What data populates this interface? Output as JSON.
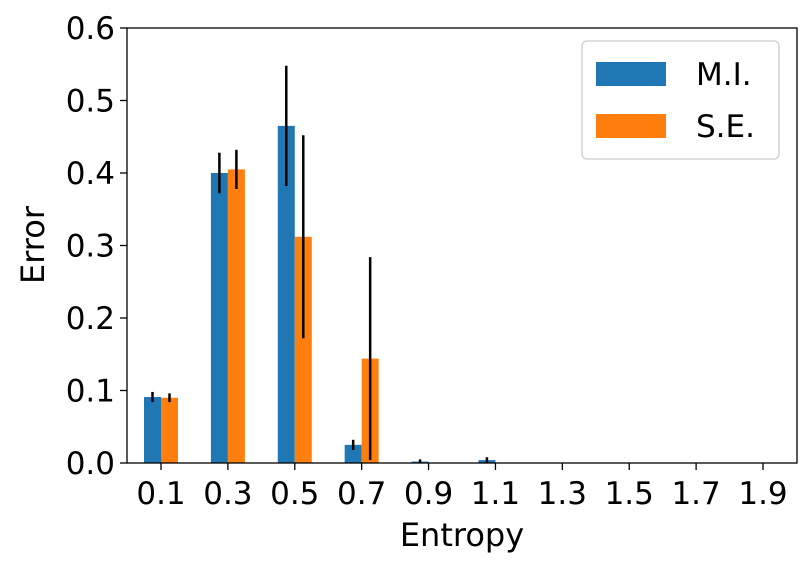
{
  "chart_data": {
    "type": "bar",
    "title": "",
    "xlabel": "Entropy",
    "ylabel": "Error",
    "ylim": [
      0,
      0.6
    ],
    "yticks": [
      "0.0",
      "0.1",
      "0.2",
      "0.3",
      "0.4",
      "0.5",
      "0.6"
    ],
    "categories": [
      "0.1",
      "0.3",
      "0.5",
      "0.7",
      "0.9",
      "1.1",
      "1.3",
      "1.5",
      "1.7",
      "1.9"
    ],
    "grid": false,
    "legend_position": "top-right",
    "series": [
      {
        "name": "M.I.",
        "color": "#1f77b4",
        "values": [
          0.091,
          0.4,
          0.465,
          0.025,
          0.002,
          0.004,
          0,
          0,
          0,
          0
        ],
        "error": [
          0.007,
          0.028,
          0.083,
          0.007,
          0.003,
          0.004,
          0,
          0,
          0,
          0
        ]
      },
      {
        "name": "S.E.",
        "color": "#ff7f0e",
        "values": [
          0.09,
          0.405,
          0.312,
          0.144,
          0,
          0,
          0,
          0,
          0,
          0
        ],
        "error": [
          0.006,
          0.027,
          0.14,
          0.14,
          0,
          0,
          0,
          0,
          0,
          0
        ]
      }
    ]
  }
}
